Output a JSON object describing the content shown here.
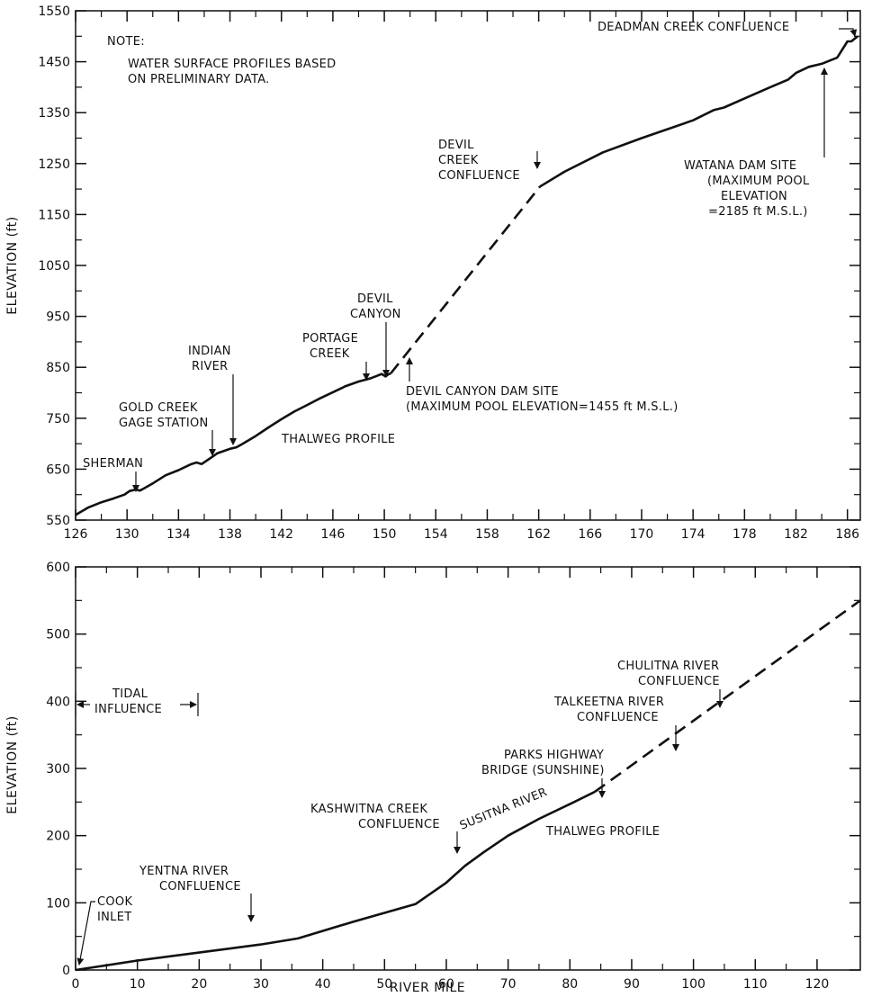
{
  "chart_data": [
    {
      "type": "line",
      "title": "",
      "xlabel": "",
      "ylabel": "ELEVATION (ft)",
      "xlim": [
        126,
        187
      ],
      "ylim": [
        550,
        1550
      ],
      "xticks": [
        126,
        130,
        134,
        138,
        142,
        146,
        150,
        154,
        158,
        162,
        166,
        170,
        174,
        178,
        182,
        186
      ],
      "yticks": [
        550,
        650,
        750,
        850,
        950,
        1050,
        1150,
        1250,
        1350,
        1450,
        1550
      ],
      "grid": false,
      "series": [
        {
          "style": "solid",
          "x": [
            126,
            127,
            128,
            129,
            129.8,
            130.2,
            130.7,
            131,
            131.3,
            132,
            133,
            134,
            135,
            135.4,
            135.8,
            136.5,
            137,
            138,
            138.5,
            139,
            140,
            141,
            142,
            143,
            144,
            145,
            146,
            147,
            148,
            148.6,
            149,
            149.5,
            149.8,
            150.1,
            150.3,
            150.5
          ],
          "y": [
            560,
            575,
            585,
            593,
            600,
            607,
            610,
            608,
            612,
            622,
            638,
            648,
            660,
            663,
            660,
            672,
            681,
            690,
            693,
            700,
            715,
            732,
            748,
            763,
            776,
            789,
            801,
            813,
            822,
            826,
            829,
            834,
            837,
            832,
            836,
            838
          ]
        },
        {
          "style": "dashed",
          "x": [
            150.5,
            162.1
          ],
          "y": [
            838,
            1205
          ]
        },
        {
          "style": "solid",
          "x": [
            162.1,
            164,
            167,
            170,
            174,
            175.6,
            176.4,
            178,
            180,
            181.4,
            182,
            183,
            184,
            185.2,
            185.5,
            186,
            186.3,
            186.8
          ],
          "y": [
            1205,
            1234,
            1272,
            1300,
            1335,
            1355,
            1360,
            1378,
            1400,
            1415,
            1428,
            1440,
            1446,
            1458,
            1470,
            1490,
            1490,
            1500
          ]
        }
      ]
    },
    {
      "type": "line",
      "title": "",
      "xlabel": "RIVER MILE",
      "ylabel": "ELEVATION (ft)",
      "xlim": [
        0,
        127
      ],
      "ylim": [
        0,
        600
      ],
      "xticks": [
        0,
        10,
        20,
        30,
        40,
        50,
        60,
        70,
        80,
        90,
        100,
        110,
        120
      ],
      "yticks": [
        0,
        100,
        200,
        300,
        400,
        500,
        600
      ],
      "grid": false,
      "series": [
        {
          "style": "solid",
          "x": [
            0,
            10,
            20,
            30,
            36,
            45,
            55,
            60,
            63,
            66,
            70,
            75,
            80,
            84
          ],
          "y": [
            0,
            14,
            26,
            38,
            47,
            72,
            98,
            130,
            155,
            175,
            200,
            225,
            247,
            265
          ]
        },
        {
          "style": "dashed",
          "x": [
            84,
            127
          ],
          "y": [
            265,
            550
          ]
        }
      ]
    }
  ],
  "top_chart": {
    "y_axis_title": "ELEVATION (ft)",
    "note_title": "NOTE:",
    "note_line1": "WATER SURFACE PROFILES BASED",
    "note_line2": "ON PRELIMINARY DATA.",
    "annotations": {
      "deadman": "DEADMAN CREEK CONFLUENCE",
      "devil_creek_1": "DEVIL",
      "devil_creek_2": "CREEK",
      "devil_creek_3": "CONFLUENCE",
      "watana_1": "WATANA DAM SITE",
      "watana_2": "(MAXIMUM POOL",
      "watana_3": "ELEVATION",
      "watana_4": "=2185 ft M.S.L.)",
      "devil_canyon_1": "DEVIL",
      "devil_canyon_2": "CANYON",
      "portage_1": "PORTAGE",
      "portage_2": "CREEK",
      "indian_1": "INDIAN",
      "indian_2": "RIVER",
      "gold_1": "GOLD CREEK",
      "gold_2": "GAGE STATION",
      "sherman": "SHERMAN",
      "dam_site_1": "DEVIL CANYON DAM SITE",
      "dam_site_2": "(MAXIMUM POOL ELEVATION=1455 ft M.S.L.)",
      "thalweg": "THALWEG PROFILE"
    }
  },
  "bottom_chart": {
    "y_axis_title": "ELEVATION (ft)",
    "x_axis_title": "RIVER MILE",
    "annotations": {
      "chulitna_1": "CHULITNA RIVER",
      "chulitna_2": "CONFLUENCE",
      "talkeetna_1": "TALKEETNA RIVER",
      "talkeetna_2": "CONFLUENCE",
      "parks_1": "PARKS HIGHWAY",
      "parks_2": "BRIDGE (SUNSHINE)",
      "kashwitna_1": "KASHWITNA CREEK",
      "kashwitna_2": "CONFLUENCE",
      "susitna": "SUSITNA RIVER",
      "thalweg": "THALWEG PROFILE",
      "tidal_1": "TIDAL",
      "tidal_2": "INFLUENCE",
      "yentna_1": "YENTNA RIVER",
      "yentna_2": "CONFLUENCE",
      "cook_1": "COOK",
      "cook_2": "INLET"
    }
  }
}
